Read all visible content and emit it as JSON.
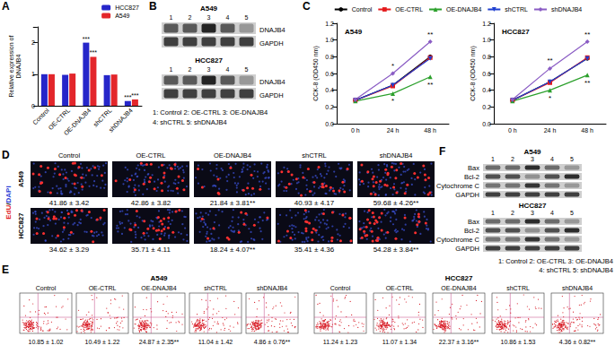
{
  "chart_data": [
    {
      "type": "bar",
      "categories": [
        "Control",
        "OE-CTRL",
        "OE-DNAJB4",
        "shCTRL",
        "shDNAJB4"
      ],
      "y_label": "Relative expression of\nDNAJB4",
      "ylim": [
        0,
        2.5
      ],
      "yticks": [
        0,
        1,
        2
      ],
      "grid": false,
      "legend": "top-right",
      "series": [
        {
          "name": "HCC827",
          "color": "#2626c9",
          "values": [
            1.0,
            0.98,
            2.0,
            0.97,
            0.15
          ],
          "significance": [
            null,
            null,
            "***",
            null,
            "***"
          ]
        },
        {
          "name": "A549",
          "color": "#e3262b",
          "values": [
            1.0,
            1.02,
            1.55,
            0.99,
            0.2
          ],
          "significance": [
            null,
            null,
            "***",
            null,
            "***"
          ]
        }
      ]
    },
    {
      "type": "line",
      "title": "A549",
      "categories": [
        "0 h",
        "24 h",
        "48 h"
      ],
      "y_label": "CCK-8 (OD450 nm)",
      "ylim": [
        0,
        1.2
      ],
      "yticks": [
        {
          "value": 0,
          "label": "0.0"
        },
        0.2,
        0.4,
        0.6,
        0.8,
        {
          "value": 1,
          "label": "1.0"
        },
        1.2
      ],
      "grid": false,
      "legend": "top",
      "series": [
        {
          "name": "Control",
          "color": "#000000",
          "marker": "circle",
          "values": [
            0.28,
            0.46,
            0.8
          ],
          "significance": [
            null,
            null,
            null
          ]
        },
        {
          "name": "OE-CTRL",
          "color": "#e41a1c",
          "marker": "square",
          "values": [
            0.28,
            0.45,
            0.79
          ],
          "significance": [
            null,
            null,
            null
          ]
        },
        {
          "name": "OE-DNAJB4",
          "color": "#2ca02c",
          "marker": "triangle",
          "values": [
            0.27,
            0.36,
            0.56
          ],
          "significance": [
            null,
            "*",
            "**"
          ]
        },
        {
          "name": "shCTRL",
          "color": "#1f3fd0",
          "marker": "triangle-down",
          "values": [
            0.28,
            0.46,
            0.78
          ],
          "significance": [
            null,
            null,
            null
          ]
        },
        {
          "name": "shDNAJB4",
          "color": "#8a5cc4",
          "marker": "diamond",
          "values": [
            0.29,
            0.6,
            0.98
          ],
          "significance": [
            null,
            "*",
            "**"
          ]
        }
      ]
    },
    {
      "type": "line",
      "title": "HCC827",
      "categories": [
        "0 h",
        "24 h",
        "48 h"
      ],
      "y_label": "CCK-8 (OD450 nm)",
      "ylim": [
        0,
        1.2
      ],
      "yticks": [
        {
          "value": 0,
          "label": "0.0"
        },
        0.2,
        0.4,
        0.6,
        0.8,
        {
          "value": 1,
          "label": "1.0"
        },
        1.2
      ],
      "grid": false,
      "legend": "top",
      "series": [
        {
          "name": "Control",
          "color": "#000000",
          "marker": "circle",
          "values": [
            0.28,
            0.5,
            0.78
          ],
          "significance": [
            null,
            null,
            null
          ]
        },
        {
          "name": "OE-CTRL",
          "color": "#e41a1c",
          "marker": "square",
          "values": [
            0.28,
            0.49,
            0.79
          ],
          "significance": [
            null,
            null,
            null
          ]
        },
        {
          "name": "OE-DNAJB4",
          "color": "#2ca02c",
          "marker": "triangle",
          "values": [
            0.27,
            0.4,
            0.58
          ],
          "significance": [
            null,
            "*",
            "**"
          ]
        },
        {
          "name": "shCTRL",
          "color": "#1f3fd0",
          "marker": "triangle-down",
          "values": [
            0.28,
            0.5,
            0.78
          ],
          "significance": [
            null,
            null,
            null
          ]
        },
        {
          "name": "shDNAJB4",
          "color": "#8a5cc4",
          "marker": "diamond",
          "values": [
            0.29,
            0.66,
            0.98
          ],
          "significance": [
            null,
            "**",
            "**"
          ]
        }
      ]
    }
  ],
  "panels": {
    "A": {
      "letter": "A"
    },
    "B": {
      "letter": "B",
      "blots": [
        {
          "cell": "A549",
          "lanes": [
            1,
            2,
            3,
            4,
            5
          ],
          "bands": [
            "DNAJB4",
            "GAPDH"
          ]
        },
        {
          "cell": "HCC827",
          "lanes": [
            1,
            2,
            3,
            4,
            5
          ],
          "bands": [
            "DNAJB4",
            "GAPDH"
          ]
        }
      ],
      "key": [
        "1: Control 2: OE-CTRL 3: OE-DNAJB4",
        "4: shCTRL 5: shDNAJB4"
      ]
    },
    "C": {
      "letter": "C"
    },
    "D": {
      "letter": "D",
      "stain": "EdU/DAPI",
      "columns": [
        "Control",
        "OE-CTRL",
        "OE-DNAJB4",
        "shCTRL",
        "shDNAJB4"
      ],
      "rows": [
        {
          "cell": "A549",
          "values": [
            "41.86 ± 3.42",
            "42.86 ± 3.82",
            "21.84 ± 3.81**",
            "40.93 ± 4.17",
            "59.68 ± 4.26**"
          ]
        },
        {
          "cell": "HCC827",
          "values": [
            "34.62 ± 3.29",
            "35.71 ± 4.11",
            "18.24 ± 4.07**",
            "35.41 ± 4.36",
            "54.28 ± 3.84**"
          ]
        }
      ]
    },
    "E": {
      "letter": "E",
      "columns": [
        "Control",
        "OE-CTRL",
        "OE-DNAJB4",
        "shCTRL",
        "shDNAJB4"
      ],
      "groups": [
        {
          "cell": "A549",
          "values": [
            "10.85 ± 1.02",
            "10.49 ± 1.22",
            "24.87 ± 2.35**",
            "11.04 ± 1.42",
            "4.86 ± 0.76**"
          ]
        },
        {
          "cell": "HCC827",
          "values": [
            "11.24 ± 1.23",
            "11.07 ± 1.34",
            "22.37 ± 3.16**",
            "10.86 ± 1.53",
            "4.36 ± 0.82**"
          ]
        }
      ]
    },
    "F": {
      "letter": "F",
      "blots": [
        {
          "cell": "A549",
          "lanes": [
            1,
            2,
            3,
            4,
            5
          ],
          "bands": [
            "Bax",
            "Bcl-2",
            "Cytochrome C",
            "GAPDH"
          ]
        },
        {
          "cell": "HCC827",
          "lanes": [
            1,
            2,
            3,
            4,
            5
          ],
          "bands": [
            "Bax",
            "Bcl-2",
            "Cytochrome C",
            "GAPDH"
          ]
        }
      ],
      "key": [
        "1: Control 2: OE-CTRL 3: OE-DNAJB4",
        "4: shCTRL 5: shDNAJB4"
      ]
    }
  }
}
